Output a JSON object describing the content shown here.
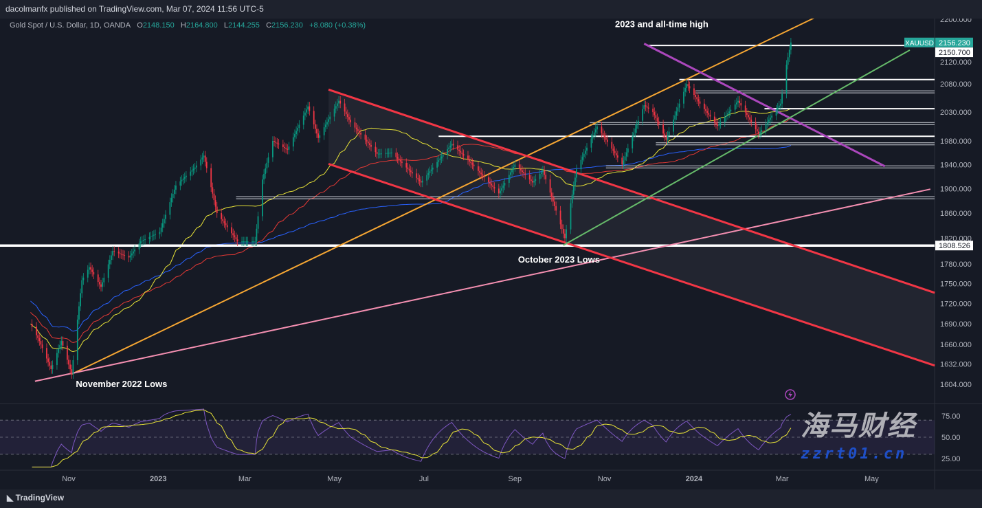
{
  "header": {
    "published": "dacolmanfx published on TradingView.com, Mar 07, 2024 11:56 UTC-5",
    "symbol_desc": "Gold Spot / U.S. Dollar, 1D, OANDA",
    "o_label": "O",
    "o": "2148.150",
    "h_label": "H",
    "h": "2164.800",
    "l_label": "L",
    "l": "2144.255",
    "c_label": "C",
    "c": "2156.230",
    "change": "+8.080 (+0.38%)"
  },
  "footer": {
    "logo": "TradingView"
  },
  "watermark": {
    "line1": "海马财经",
    "line2": "zzrt01.cn"
  },
  "colors": {
    "up": "#089981",
    "down": "#f23645",
    "orange": "#f7a733",
    "red": "#f23645",
    "pink": "#f48fb1",
    "purple": "#ab47bc",
    "green": "#66bb6a",
    "ma50": "#e8e337",
    "ma100": "#e53935",
    "ma200": "#2962ff",
    "rsi": "#7e57c2",
    "rsi_ma": "#e8e337",
    "accent": "#26a69a"
  },
  "chart_data": {
    "type": "candlestick",
    "scale": "log",
    "ylim": [
      1590,
      2215
    ],
    "xlim": [
      "2022-10-06",
      "2024-06-12"
    ],
    "y_ticks": [
      "2200.000",
      "2120.000",
      "2080.000",
      "2030.000",
      "1980.000",
      "1940.000",
      "1900.000",
      "1860.000",
      "1820.000",
      "1780.000",
      "1750.000",
      "1720.000",
      "1690.000",
      "1660.000",
      "1632.000",
      "1604.000"
    ],
    "x_ticks": [
      {
        "label": "Nov",
        "date": "2022-11-01"
      },
      {
        "label": "2023",
        "date": "2023-01-01"
      },
      {
        "label": "Mar",
        "date": "2023-03-01"
      },
      {
        "label": "May",
        "date": "2023-05-01"
      },
      {
        "label": "Jul",
        "date": "2023-07-01"
      },
      {
        "label": "Sep",
        "date": "2023-09-01"
      },
      {
        "label": "Nov",
        "date": "2023-11-01"
      },
      {
        "label": "2024",
        "date": "2024-01-01"
      },
      {
        "label": "Mar",
        "date": "2024-03-01"
      },
      {
        "label": "May",
        "date": "2024-05-01"
      }
    ],
    "price_series": [
      [
        "2022-10-06",
        1690
      ],
      [
        "2022-10-12",
        1665
      ],
      [
        "2022-10-20",
        1625
      ],
      [
        "2022-10-27",
        1665
      ],
      [
        "2022-11-03",
        1618
      ],
      [
        "2022-11-10",
        1755
      ],
      [
        "2022-11-15",
        1775
      ],
      [
        "2022-11-23",
        1745
      ],
      [
        "2022-12-01",
        1800
      ],
      [
        "2022-12-12",
        1790
      ],
      [
        "2022-12-20",
        1815
      ],
      [
        "2023-01-02",
        1830
      ],
      [
        "2023-01-13",
        1905
      ],
      [
        "2023-01-26",
        1935
      ],
      [
        "2023-02-01",
        1955
      ],
      [
        "2023-02-10",
        1860
      ],
      [
        "2023-02-24",
        1815
      ],
      [
        "2023-03-08",
        1815
      ],
      [
        "2023-03-13",
        1915
      ],
      [
        "2023-03-20",
        1980
      ],
      [
        "2023-03-30",
        1965
      ],
      [
        "2023-04-13",
        2040
      ],
      [
        "2023-04-20",
        1985
      ],
      [
        "2023-05-04",
        2050
      ],
      [
        "2023-05-12",
        2012
      ],
      [
        "2023-05-30",
        1958
      ],
      [
        "2023-06-09",
        1960
      ],
      [
        "2023-06-29",
        1910
      ],
      [
        "2023-07-20",
        1975
      ],
      [
        "2023-08-01",
        1945
      ],
      [
        "2023-08-21",
        1892
      ],
      [
        "2023-09-01",
        1940
      ],
      [
        "2023-09-13",
        1910
      ],
      [
        "2023-09-20",
        1930
      ],
      [
        "2023-10-05",
        1820
      ],
      [
        "2023-10-13",
        1932
      ],
      [
        "2023-10-27",
        2005
      ],
      [
        "2023-11-13",
        1940
      ],
      [
        "2023-11-28",
        2042
      ],
      [
        "2023-12-04",
        2030
      ],
      [
        "2023-12-13",
        1982
      ],
      [
        "2023-12-27",
        2080
      ],
      [
        "2024-01-05",
        2045
      ],
      [
        "2024-01-17",
        2006
      ],
      [
        "2024-01-31",
        2050
      ],
      [
        "2024-02-14",
        1992
      ],
      [
        "2024-02-29",
        2045
      ],
      [
        "2024-03-04",
        2115
      ],
      [
        "2024-03-07",
        2156.23
      ]
    ],
    "horizontal_levels": [
      {
        "price": 1808.526,
        "from": "2022-10-06",
        "label": "1808.526",
        "thick": true
      },
      {
        "price": 2150.7,
        "from": "2023-11-30",
        "label": "2150.700"
      },
      {
        "price": 2088,
        "from": "2023-12-22"
      },
      {
        "price": 2066,
        "from": "2024-01-02",
        "double": true
      },
      {
        "price": 2036,
        "from": "2024-02-18"
      },
      {
        "price": 2010,
        "from": "2023-10-22",
        "double": true
      },
      {
        "price": 1988,
        "from": "2023-07-11"
      },
      {
        "price": 1975,
        "from": "2023-12-06",
        "double": true
      },
      {
        "price": 1936,
        "from": "2023-11-02",
        "double": true
      },
      {
        "price": 1885,
        "from": "2023-02-23",
        "double": true
      }
    ],
    "trendlines": [
      {
        "color": "orange",
        "from": [
          "2022-11-03",
          1618
        ],
        "to": [
          "2024-03-27",
          2208
        ]
      },
      {
        "color": "pink",
        "from": [
          "2022-10-09",
          1608
        ],
        "to": [
          "2024-06-10",
          1899
        ]
      },
      {
        "color": "red",
        "from": [
          "2023-04-27",
          2070
        ],
        "to": [
          "2024-06-13",
          1736
        ]
      },
      {
        "color": "red",
        "from": [
          "2023-04-27",
          1941
        ],
        "to": [
          "2024-06-13",
          1630
        ]
      },
      {
        "color": "purple",
        "from": [
          "2023-11-28",
          2154
        ],
        "to": [
          "2024-05-10",
          1937
        ]
      },
      {
        "color": "green",
        "from": [
          "2023-10-04",
          1809
        ],
        "to": [
          "2024-05-27",
          2142
        ]
      }
    ],
    "annotations": [
      {
        "text": "2023 and all-time high",
        "date": "2023-12-10",
        "price": 2185
      },
      {
        "text": "October 2023 Lows",
        "date": "2023-10-01",
        "price": 1782
      },
      {
        "text": "November 2022 Lows",
        "date": "2022-12-07",
        "price": 1600
      }
    ],
    "last_price_tag": {
      "symbol": "XAUUSD",
      "value": "2156.230"
    },
    "rsi": {
      "ticks": [
        "75.00",
        "50.00",
        "25.00"
      ],
      "ylim": [
        0,
        100
      ],
      "upper": 70,
      "lower": 30
    }
  }
}
